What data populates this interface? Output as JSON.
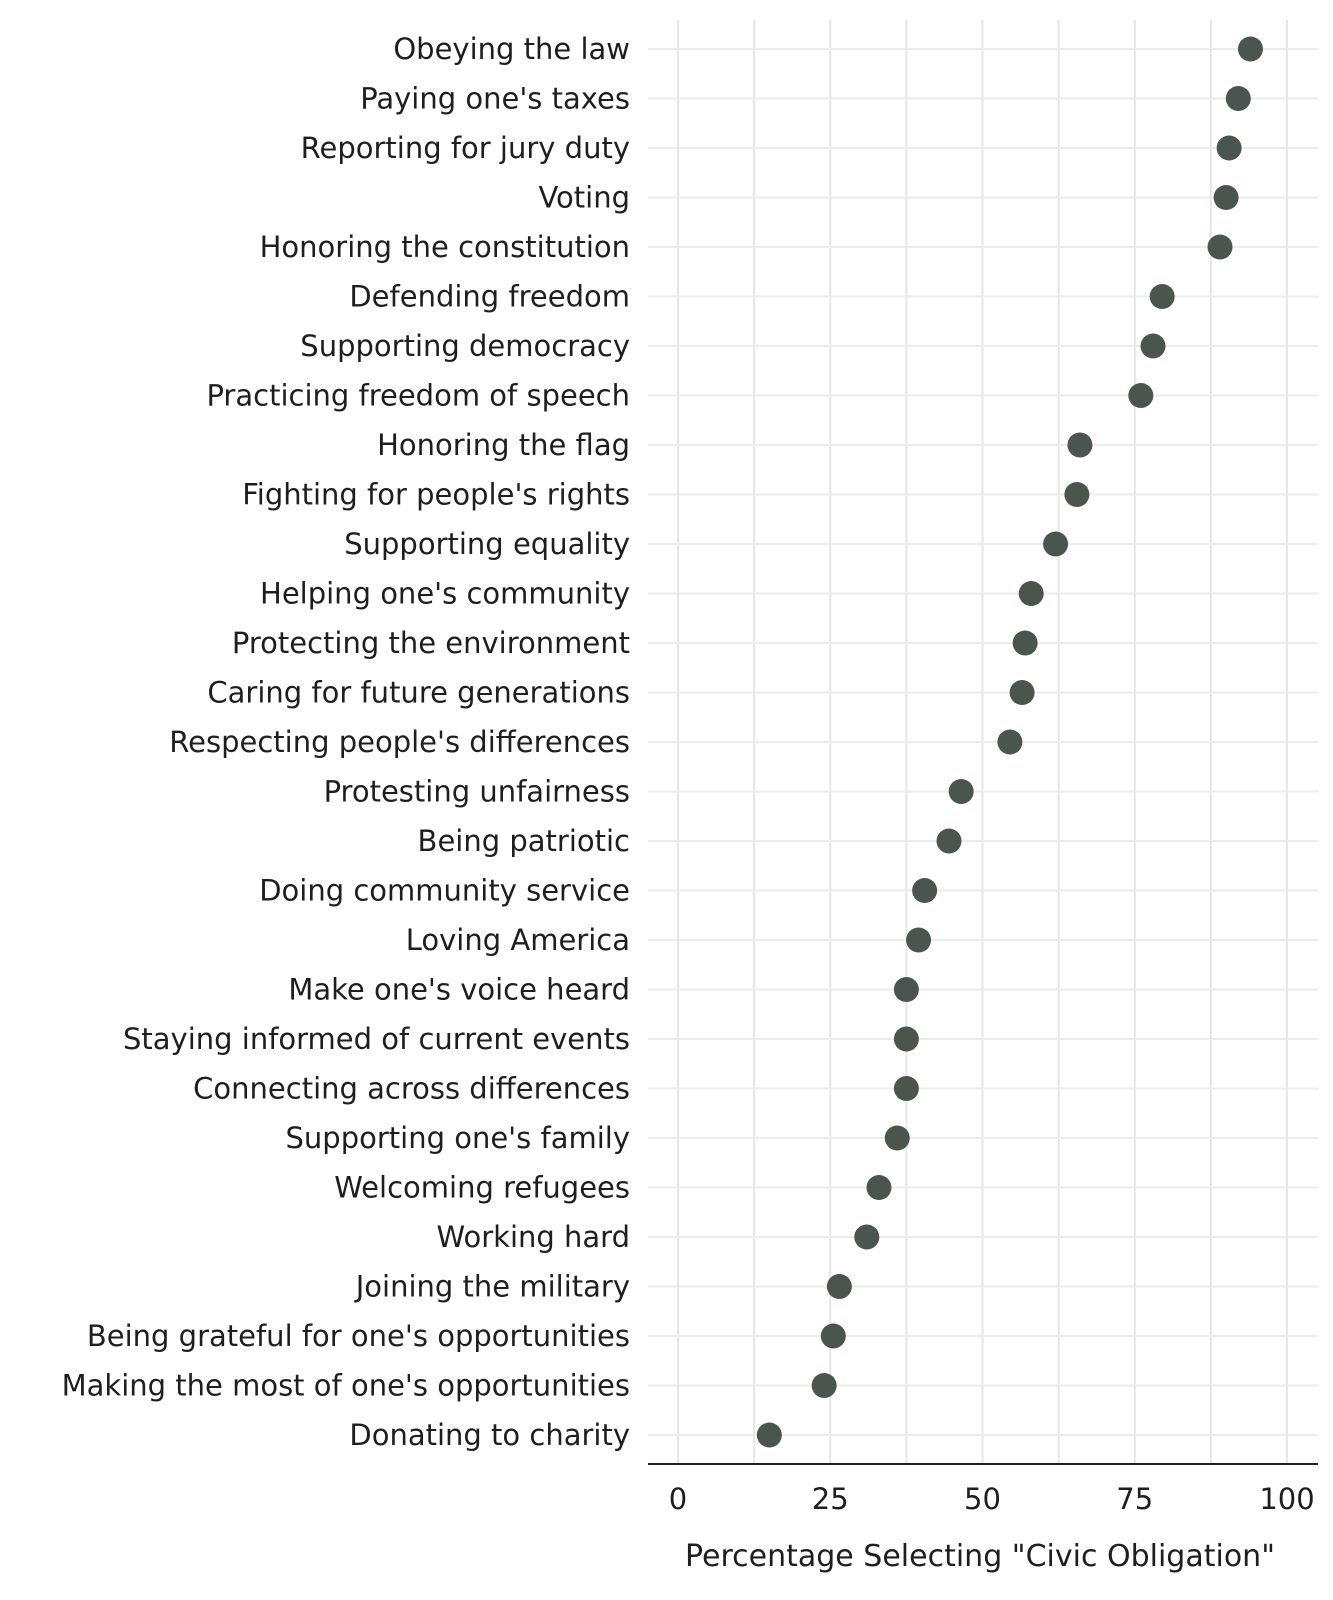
{
  "chart_data": {
    "type": "scatter",
    "title": "",
    "xlabel": "Percentage Selecting \"Civic Obligation\"",
    "ylabel": "",
    "xlim": [
      0,
      100
    ],
    "xticks": [
      "0",
      "25",
      "50",
      "75",
      "100"
    ],
    "grid": true,
    "legend": "none",
    "point_color": "#4a564d",
    "categories": [
      "Obeying the law",
      "Paying one's taxes",
      "Reporting for jury duty",
      "Voting",
      "Honoring the constitution",
      "Defending freedom",
      "Supporting democracy",
      "Practicing freedom of speech",
      "Honoring the flag",
      "Fighting for people's rights",
      "Supporting equality",
      "Helping one's community",
      "Protecting the environment",
      "Caring for future generations",
      "Respecting people's differences",
      "Protesting unfairness",
      "Being patriotic",
      "Doing community service",
      "Loving America",
      "Make one's voice heard",
      "Staying informed of current events",
      "Connecting across differences",
      "Supporting one's family",
      "Welcoming refugees",
      "Working hard",
      "Joining the military",
      "Being grateful for one's opportunities",
      "Making the most of one's opportunities",
      "Donating to charity"
    ],
    "values": [
      94,
      92,
      90.5,
      90,
      89,
      79.5,
      78,
      76,
      66,
      65.5,
      62,
      58,
      57,
      56.5,
      54.5,
      46.5,
      44.5,
      40.5,
      39.5,
      37.5,
      37.5,
      37.5,
      36,
      33,
      31,
      26.5,
      25.5,
      24,
      15
    ]
  }
}
